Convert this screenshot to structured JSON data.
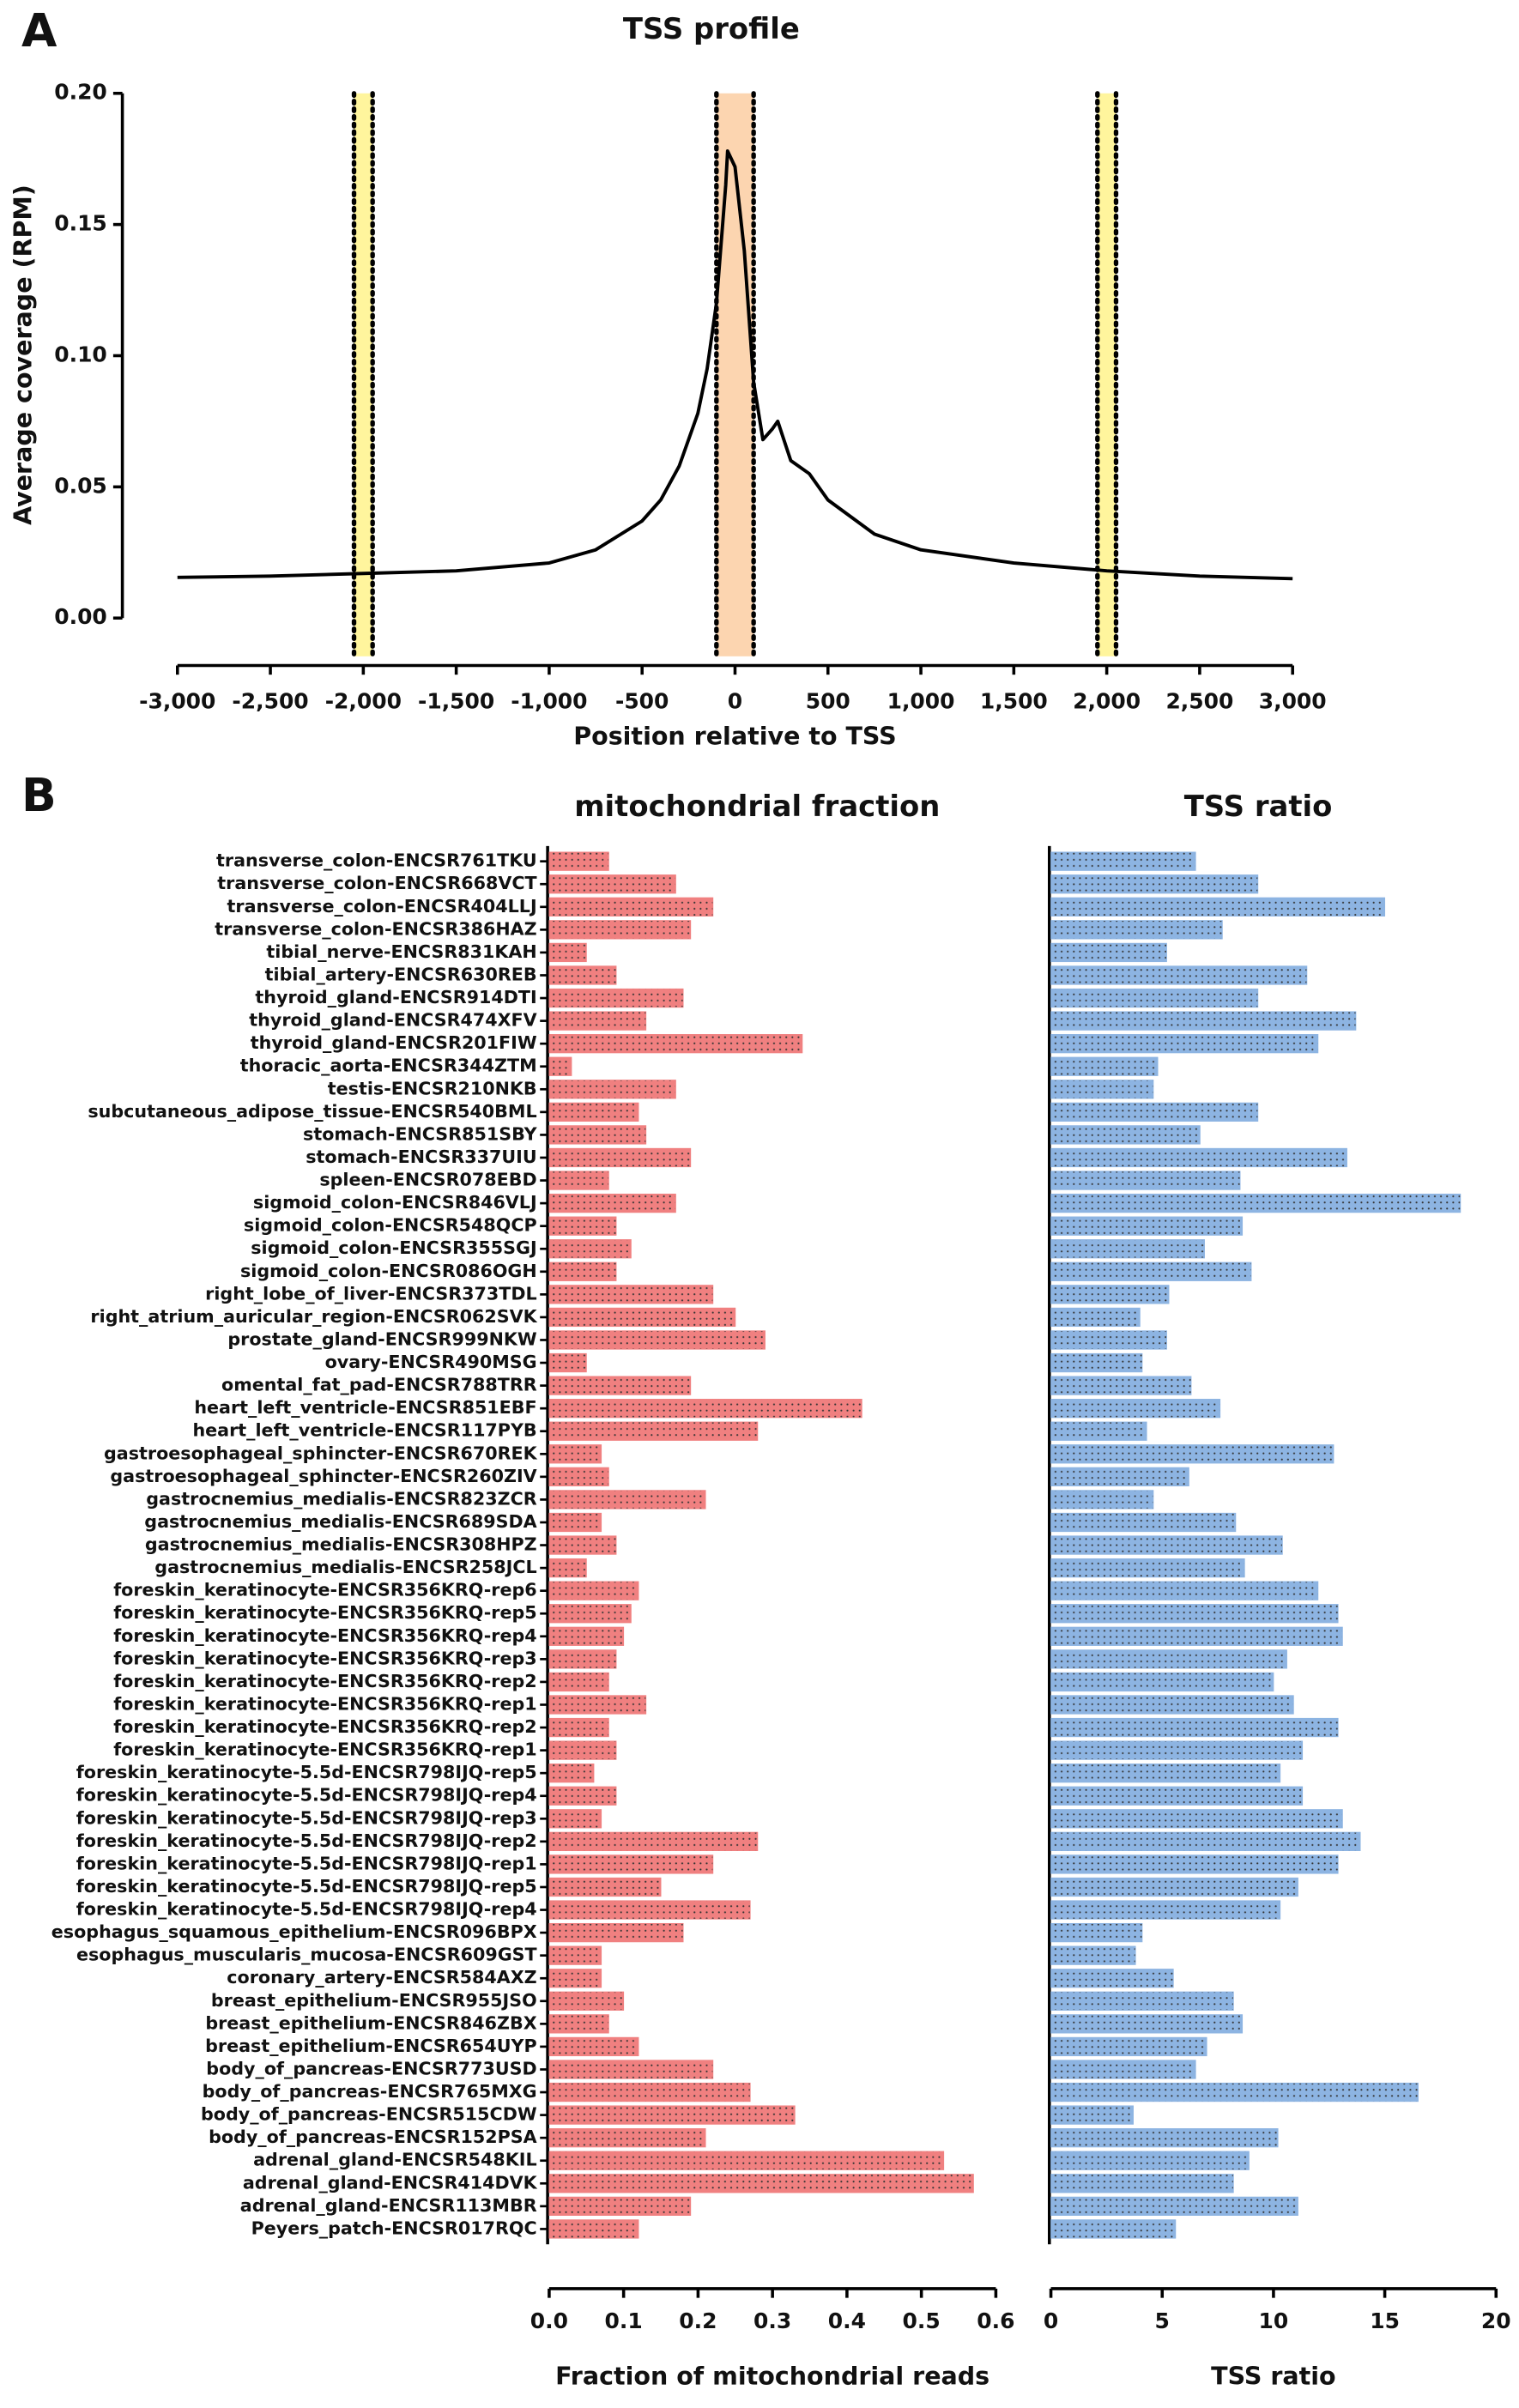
{
  "chart_data": [
    {
      "type": "line",
      "panel": "A",
      "title": "TSS profile",
      "x_label": "Position relative to TSS",
      "y_label": "Average coverage (RPM)",
      "x": [
        -3000,
        -2500,
        -2000,
        -1500,
        -1000,
        -750,
        -500,
        -400,
        -300,
        -200,
        -150,
        -100,
        -50,
        -40,
        0,
        50,
        100,
        150,
        200,
        230,
        300,
        400,
        500,
        750,
        1000,
        1500,
        2000,
        2500,
        3000
      ],
      "y": [
        0.0155,
        0.016,
        0.017,
        0.018,
        0.021,
        0.026,
        0.037,
        0.045,
        0.058,
        0.078,
        0.095,
        0.12,
        0.165,
        0.178,
        0.172,
        0.14,
        0.09,
        0.068,
        0.072,
        0.075,
        0.06,
        0.055,
        0.045,
        0.032,
        0.026,
        0.021,
        0.018,
        0.016,
        0.015
      ],
      "color": "#000000",
      "bands": [
        {
          "range": [
            -2050,
            -1950
          ],
          "color": "#fff59d"
        },
        {
          "range": [
            -100,
            100
          ],
          "color": "#fcd5b0"
        },
        {
          "range": [
            1950,
            2050
          ],
          "color": "#fff59d"
        }
      ],
      "xlim": [
        -3000,
        3000
      ],
      "xticks": [
        {
          "value": -3000,
          "label": "-3,000"
        },
        {
          "value": -2500,
          "label": "-2,500"
        },
        {
          "value": -2000,
          "label": "-2,000"
        },
        {
          "value": -1500,
          "label": "-1,500"
        },
        {
          "value": -1000,
          "label": "-1,000"
        },
        -500,
        0,
        500,
        {
          "value": 1000,
          "label": "1,000"
        },
        {
          "value": 1500,
          "label": "1,500"
        },
        {
          "value": 2000,
          "label": "2,000"
        },
        {
          "value": 2500,
          "label": "2,500"
        },
        {
          "value": 3000,
          "label": "3,000"
        }
      ],
      "ylim": [
        0,
        0.2
      ],
      "yticks": [
        {
          "value": 0,
          "label": "0.00"
        },
        0.05,
        {
          "value": 0.1,
          "label": "0.10"
        },
        0.15,
        {
          "value": 0.2,
          "label": "0.20"
        }
      ]
    },
    {
      "type": "hbar",
      "panel": "B",
      "title": "mitochondrial fraction",
      "x_label": "Fraction of mitochondrial reads",
      "color": "#f08080",
      "categories": [
        "transverse_colon-ENCSR761TKU",
        "transverse_colon-ENCSR668VCT",
        "transverse_colon-ENCSR404LLJ",
        "transverse_colon-ENCSR386HAZ",
        "tibial_nerve-ENCSR831KAH",
        "tibial_artery-ENCSR630REB",
        "thyroid_gland-ENCSR914DTI",
        "thyroid_gland-ENCSR474XFV",
        "thyroid_gland-ENCSR201FIW",
        "thoracic_aorta-ENCSR344ZTM",
        "testis-ENCSR210NKB",
        "subcutaneous_adipose_tissue-ENCSR540BML",
        "stomach-ENCSR851SBY",
        "stomach-ENCSR337UIU",
        "spleen-ENCSR078EBD",
        "sigmoid_colon-ENCSR846VLJ",
        "sigmoid_colon-ENCSR548QCP",
        "sigmoid_colon-ENCSR355SGJ",
        "sigmoid_colon-ENCSR086OGH",
        "right_lobe_of_liver-ENCSR373TDL",
        "right_atrium_auricular_region-ENCSR062SVK",
        "prostate_gland-ENCSR999NKW",
        "ovary-ENCSR490MSG",
        "omental_fat_pad-ENCSR788TRR",
        "heart_left_ventricle-ENCSR851EBF",
        "heart_left_ventricle-ENCSR117PYB",
        "gastroesophageal_sphincter-ENCSR670REK",
        "gastroesophageal_sphincter-ENCSR260ZIV",
        "gastrocnemius_medialis-ENCSR823ZCR",
        "gastrocnemius_medialis-ENCSR689SDA",
        "gastrocnemius_medialis-ENCSR308HPZ",
        "gastrocnemius_medialis-ENCSR258JCL",
        "foreskin_keratinocyte-ENCSR356KRQ-rep6",
        "foreskin_keratinocyte-ENCSR356KRQ-rep5",
        "foreskin_keratinocyte-ENCSR356KRQ-rep4",
        "foreskin_keratinocyte-ENCSR356KRQ-rep3",
        "foreskin_keratinocyte-ENCSR356KRQ-rep2",
        "foreskin_keratinocyte-ENCSR356KRQ-rep1",
        "foreskin_keratinocyte-ENCSR356KRQ-rep2",
        "foreskin_keratinocyte-ENCSR356KRQ-rep1",
        "foreskin_keratinocyte-5.5d-ENCSR798IJQ-rep5",
        "foreskin_keratinocyte-5.5d-ENCSR798IJQ-rep4",
        "foreskin_keratinocyte-5.5d-ENCSR798IJQ-rep3",
        "foreskin_keratinocyte-5.5d-ENCSR798IJQ-rep2",
        "foreskin_keratinocyte-5.5d-ENCSR798IJQ-rep1",
        "foreskin_keratinocyte-5.5d-ENCSR798IJQ-rep5",
        "foreskin_keratinocyte-5.5d-ENCSR798IJQ-rep4",
        "esophagus_squamous_epithelium-ENCSR096BPX",
        "esophagus_muscularis_mucosa-ENCSR609GST",
        "coronary_artery-ENCSR584AXZ",
        "breast_epithelium-ENCSR955JSO",
        "breast_epithelium-ENCSR846ZBX",
        "breast_epithelium-ENCSR654UYP",
        "body_of_pancreas-ENCSR773USD",
        "body_of_pancreas-ENCSR765MXG",
        "body_of_pancreas-ENCSR515CDW",
        "body_of_pancreas-ENCSR152PSA",
        "adrenal_gland-ENCSR548KIL",
        "adrenal_gland-ENCSR414DVK",
        "adrenal_gland-ENCSR113MBR",
        "Peyers_patch-ENCSR017RQC"
      ],
      "values": [
        0.08,
        0.17,
        0.22,
        0.19,
        0.05,
        0.09,
        0.18,
        0.13,
        0.34,
        0.03,
        0.17,
        0.12,
        0.13,
        0.19,
        0.08,
        0.17,
        0.09,
        0.11,
        0.09,
        0.22,
        0.25,
        0.29,
        0.05,
        0.19,
        0.42,
        0.28,
        0.07,
        0.08,
        0.21,
        0.07,
        0.09,
        0.05,
        0.12,
        0.11,
        0.1,
        0.09,
        0.08,
        0.13,
        0.08,
        0.09,
        0.06,
        0.09,
        0.07,
        0.28,
        0.22,
        0.15,
        0.27,
        0.18,
        0.07,
        0.07,
        0.1,
        0.08,
        0.12,
        0.22,
        0.27,
        0.33,
        0.21,
        0.53,
        0.57,
        0.19,
        0.12
      ],
      "xlim": [
        0,
        0.6
      ],
      "xticks": [
        {
          "value": 0,
          "label": "0.0"
        },
        0.1,
        0.2,
        0.3,
        0.4,
        0.5,
        0.6
      ]
    },
    {
      "type": "hbar",
      "title": "TSS ratio",
      "x_label": "TSS ratio",
      "color": "#8db4e2",
      "values": [
        6.5,
        9.3,
        15.0,
        7.7,
        5.2,
        11.5,
        9.3,
        13.7,
        12.0,
        4.8,
        4.6,
        9.3,
        6.7,
        13.3,
        8.5,
        18.4,
        8.6,
        6.9,
        9.0,
        5.3,
        4.0,
        5.2,
        4.1,
        6.3,
        7.6,
        4.3,
        12.7,
        6.2,
        4.6,
        8.3,
        10.4,
        8.7,
        12.0,
        12.9,
        13.1,
        10.6,
        10.0,
        10.9,
        12.9,
        11.3,
        10.3,
        11.3,
        13.1,
        13.9,
        12.9,
        11.1,
        10.3,
        4.1,
        3.8,
        5.5,
        8.2,
        8.6,
        7.0,
        6.5,
        16.5,
        3.7,
        10.2,
        8.9,
        8.2,
        11.1,
        5.6
      ],
      "xlim": [
        0,
        20
      ],
      "xticks": [
        0,
        5,
        10,
        15,
        20
      ]
    }
  ]
}
